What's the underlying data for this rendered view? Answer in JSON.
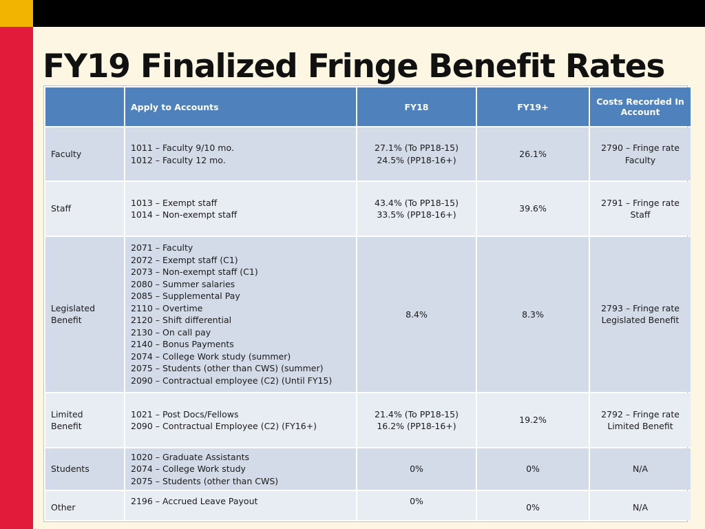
{
  "slide": {
    "title": "FY19 Finalized Fringe Benefit Rates"
  },
  "table": {
    "headers": [
      "",
      "Apply to Accounts",
      "FY18",
      "FY19+",
      "Costs Recorded In Account"
    ],
    "rows": [
      {
        "category": "Faculty",
        "accounts": [
          "1011 – Faculty 9/10 mo.",
          "1012 – Faculty 12 mo."
        ],
        "fy18": [
          "27.1% (To PP18-15)",
          "24.5% (PP18-16+)"
        ],
        "fy19": "26.1%",
        "recorded": [
          "2790 – Fringe rate",
          "Faculty"
        ]
      },
      {
        "category": "Staff",
        "accounts": [
          "1013 – Exempt staff",
          "1014 – Non-exempt staff"
        ],
        "fy18": [
          "43.4% (To PP18-15)",
          "33.5% (PP18-16+)"
        ],
        "fy19": "39.6%",
        "recorded": [
          "2791 – Fringe rate",
          "Staff"
        ]
      },
      {
        "category": [
          "Legislated",
          "Benefit"
        ],
        "accounts": [
          "2071 – Faculty",
          "2072 – Exempt staff (C1)",
          "2073 – Non-exempt staff (C1)",
          "2080 – Summer salaries",
          "2085 – Supplemental Pay",
          "2110 – Overtime",
          "2120 – Shift differential",
          "2130 – On call pay",
          "2140 – Bonus Payments",
          "2074 – College Work study  (summer)",
          "2075 – Students (other than CWS) (summer)",
          "2090 – Contractual employee  (C2) (Until FY15)"
        ],
        "fy18": "8.4%",
        "fy19": "8.3%",
        "recorded": [
          "2793 – Fringe rate",
          "Legislated Benefit"
        ]
      },
      {
        "category": [
          "Limited",
          "Benefit"
        ],
        "accounts": [
          "1021 – Post Docs/Fellows",
          "2090 – Contractual Employee (C2) (FY16+)"
        ],
        "fy18": [
          "21.4% (To PP18-15)",
          "16.2% (PP18-16+)"
        ],
        "fy19": "19.2%",
        "recorded": [
          "2792 – Fringe rate",
          "Limited Benefit"
        ]
      },
      {
        "category": "Students",
        "accounts": [
          "1020 – Graduate Assistants",
          "2074 – College Work study",
          "2075 – Students (other than CWS)"
        ],
        "fy18": "0%",
        "fy19": "0%",
        "recorded": "N/A"
      },
      {
        "category": "Other",
        "accounts": [
          "2196 – Accrued Leave Payout"
        ],
        "fy18": "0%",
        "fy19": "0%",
        "recorded": "N/A"
      }
    ]
  }
}
